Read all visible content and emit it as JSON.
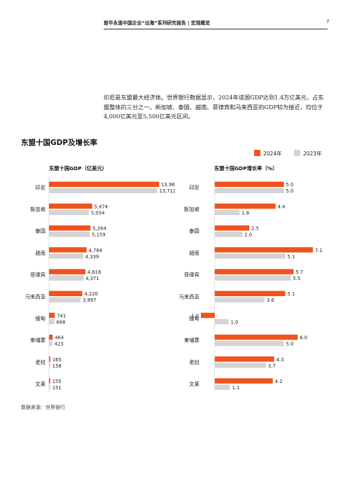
{
  "header": {
    "title": "普华永道中国企业“出海”系列研究报告 | 宏观概览",
    "page_number": "7"
  },
  "intro_text": "印尼是东盟最大经济体。世界银行数据显示，2024年该国GDP达到1.4万亿美元，占东盟整体的三分之一。新加坡、泰国、越南、菲律宾和马来西亚的GDP较为接近，均位于4,000亿美元至5,500亿美元区间。",
  "section_title": "东盟十国GDP及增长率",
  "legend": {
    "series_2024": "2024年",
    "series_2023": "2023年"
  },
  "colors": {
    "series_2024": "#F0531E",
    "series_2023": "#D4D4D4"
  },
  "source": "数据来源：世界银行",
  "chart_data": [
    {
      "type": "bar",
      "orientation": "horizontal",
      "title": "东盟十国GDP（亿美元）",
      "categories": [
        "印尼",
        "新加坡",
        "泰国",
        "越南",
        "菲律宾",
        "马来西亚",
        "缅甸",
        "柬埔寨",
        "老挝",
        "文莱"
      ],
      "series": [
        {
          "name": "2024年",
          "values": [
            13963,
            5474,
            5264,
            4764,
            4616,
            4220,
            741,
            464,
            165,
            155
          ],
          "labels": [
            "13,963",
            "5,474",
            "5,264",
            "4,764",
            "4,616",
            "4,220",
            "741",
            "464",
            "165",
            "155"
          ]
        },
        {
          "name": "2023年",
          "values": [
            13712,
            5054,
            5159,
            4339,
            4371,
            3997,
            668,
            423,
            158,
            151
          ],
          "labels": [
            "13,712",
            "5,054",
            "5,159",
            "4,339",
            "4,371",
            "3,997",
            "668",
            "423",
            "158",
            "151"
          ]
        }
      ],
      "xlim": [
        0,
        14200
      ],
      "grid": false
    },
    {
      "type": "bar",
      "orientation": "horizontal",
      "title": "东盟十国GDP增长率（%）",
      "categories": [
        "印尼",
        "新加坡",
        "泰国",
        "越南",
        "菲律宾",
        "马来西亚",
        "缅甸",
        "柬埔寨",
        "老挝",
        "文莱"
      ],
      "series": [
        {
          "name": "2024年",
          "values": [
            5.0,
            4.4,
            2.5,
            7.1,
            5.7,
            5.1,
            -1.0,
            6.0,
            4.3,
            4.2
          ],
          "labels": [
            "5.0",
            "4.4",
            "2.5",
            "7.1",
            "5.7",
            "5.1",
            "-1.0",
            "6.0",
            "4.3",
            "4.2"
          ]
        },
        {
          "name": "2023年",
          "values": [
            5.0,
            1.8,
            2.0,
            5.1,
            5.5,
            3.6,
            1.0,
            5.0,
            3.7,
            1.1
          ],
          "labels": [
            "5.0",
            "1.8",
            "2.0",
            "5.1",
            "5.5",
            "3.6",
            "1.0",
            "5.0",
            "3.7",
            "1.1"
          ]
        }
      ],
      "xlim": [
        -1.0,
        7.1
      ],
      "grid": false
    }
  ]
}
